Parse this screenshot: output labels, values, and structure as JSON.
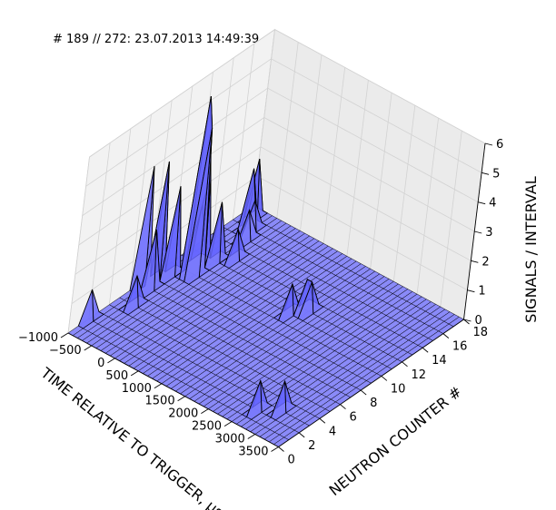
{
  "chart_data": {
    "type": "3d-surface",
    "title": "# 189 // 272: 23.07.2013 14:49:39",
    "xlabel": "TIME RELATIVE TO TRIGGER, μs",
    "ylabel": "NEUTRON COUNTER #",
    "zlabel": "SIGNALS / INTERVAL",
    "xlim": [
      -1000,
      3500
    ],
    "ylim": [
      0,
      18
    ],
    "zlim": [
      0,
      6
    ],
    "x_ticks": [
      "−1000",
      "−500",
      "0",
      "500",
      "1000",
      "1500",
      "2000",
      "2500",
      "3000",
      "3500"
    ],
    "y_ticks": [
      "0",
      "2",
      "4",
      "6",
      "8",
      "10",
      "12",
      "14",
      "16",
      "18"
    ],
    "z_ticks": [
      "0",
      "1",
      "2",
      "3",
      "4",
      "5",
      "6"
    ],
    "surface_color": "#6666ff",
    "edge_color": "#000000",
    "grid": true,
    "peaks": [
      {
        "x": -800,
        "y": 17,
        "z": 2
      },
      {
        "x": -700,
        "y": 16,
        "z": 2
      },
      {
        "x": -600,
        "y": 16,
        "z": 1
      },
      {
        "x": -500,
        "y": 15,
        "z": 1
      },
      {
        "x": -300,
        "y": 13,
        "z": 1
      },
      {
        "x": -500,
        "y": 12,
        "z": 2
      },
      {
        "x": -600,
        "y": 11,
        "z": 3
      },
      {
        "x": -700,
        "y": 11,
        "z": 2
      },
      {
        "x": -500,
        "y": 10,
        "z": 5
      },
      {
        "x": -600,
        "y": 10,
        "z": 6
      },
      {
        "x": -800,
        "y": 9,
        "z": 3
      },
      {
        "x": -900,
        "y": 8,
        "z": 4
      },
      {
        "x": -1000,
        "y": 7,
        "z": 4
      },
      {
        "x": -800,
        "y": 7,
        "z": 2
      },
      {
        "x": -700,
        "y": 5,
        "z": 1
      },
      {
        "x": -1000,
        "y": 2,
        "z": 1
      },
      {
        "x": 1400,
        "y": 12,
        "z": 1
      },
      {
        "x": 1500,
        "y": 12,
        "z": 1
      },
      {
        "x": 1300,
        "y": 11,
        "z": 1
      },
      {
        "x": 2600,
        "y": 2,
        "z": 1
      },
      {
        "x": 2900,
        "y": 3,
        "z": 1
      }
    ]
  }
}
